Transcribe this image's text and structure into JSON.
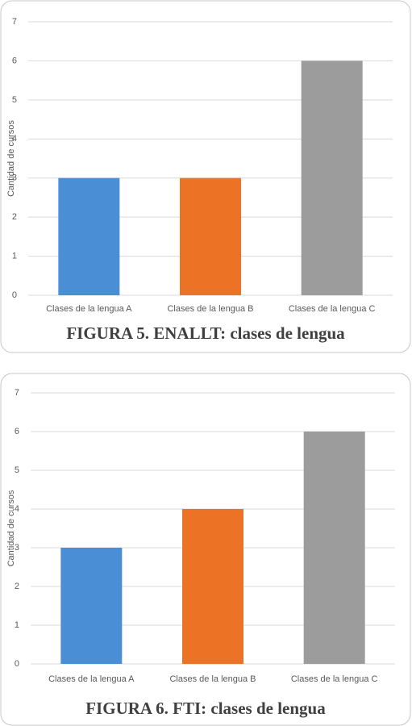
{
  "chart_data": [
    {
      "type": "bar",
      "title": "FIGURA 5. ENALLT: clases de lengua",
      "y_label": "Cantidad de cursos",
      "categories": [
        "Clases de la lengua A",
        "Clases de la lengua B",
        "Clases de la lengua C"
      ],
      "values": [
        3,
        3,
        6
      ],
      "colors": [
        "#4a8fd6",
        "#ec7326",
        "#9c9c9c"
      ],
      "ylim": [
        0,
        7
      ],
      "yticks": [
        0,
        1,
        2,
        3,
        4,
        5,
        6,
        7
      ],
      "grid": true
    },
    {
      "type": "bar",
      "title": "FIGURA 6. FTI: clases de lengua",
      "y_label": "Cantidad de cursos",
      "categories": [
        "Clases de la lengua A",
        "Clases de la lengua B",
        "Clases de la lengua C"
      ],
      "values": [
        3,
        4,
        6
      ],
      "colors": [
        "#4a8fd6",
        "#ec7326",
        "#9c9c9c"
      ],
      "ylim": [
        0,
        7
      ],
      "yticks": [
        0,
        1,
        2,
        3,
        4,
        5,
        6,
        7
      ],
      "grid": true
    }
  ]
}
